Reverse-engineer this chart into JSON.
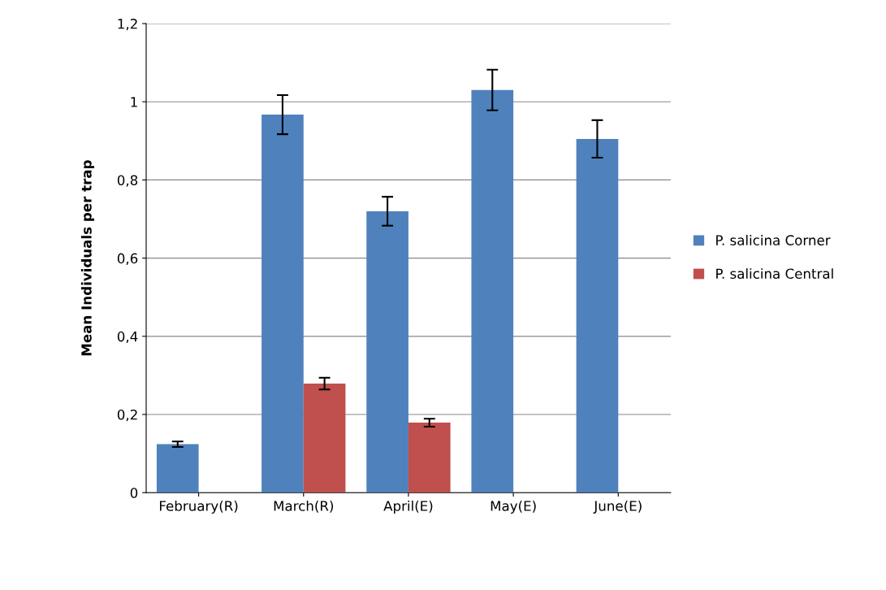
{
  "chart_data": {
    "type": "bar",
    "ylabel": "Mean Individuals per trap",
    "categories": [
      "February(R)",
      "March(R)",
      "April(E)",
      "May(E)",
      "June(E)"
    ],
    "series": [
      {
        "name": "P. salicina Corner",
        "color": "#4f81bd",
        "values": [
          0.124,
          0.967,
          0.72,
          1.03,
          0.905
        ],
        "errors": [
          0.007,
          0.05,
          0.037,
          0.052,
          0.048
        ]
      },
      {
        "name": "P. salicina Central",
        "color": "#c0504d",
        "values": [
          null,
          0.279,
          0.179,
          null,
          null
        ],
        "errors": [
          null,
          0.015,
          0.01,
          null,
          null
        ]
      }
    ],
    "ylim": [
      0,
      1.2
    ],
    "yticks": [
      {
        "value": 0,
        "label": "0"
      },
      {
        "value": 0.2,
        "label": "0,2"
      },
      {
        "value": 0.4,
        "label": "0,4"
      },
      {
        "value": 0.6,
        "label": "0,6"
      },
      {
        "value": 0.8,
        "label": "0,8"
      },
      {
        "value": 1,
        "label": "1"
      },
      {
        "value": 1.2,
        "label": "1,2"
      }
    ],
    "grid": "y",
    "legend": "right"
  }
}
